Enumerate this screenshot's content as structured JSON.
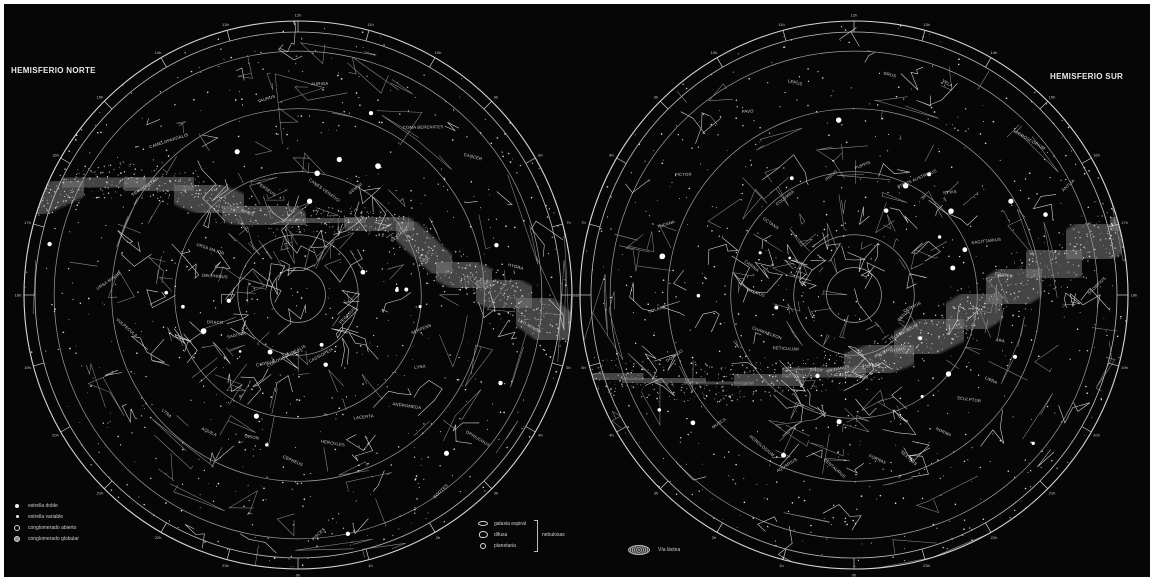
{
  "titles": {
    "north": "HEMISFERIO NORTE",
    "south": "HEMISFERIO SUR"
  },
  "legend_stars": [
    {
      "label": "estrella doble",
      "icon": "bright-star"
    },
    {
      "label": "estrella variable",
      "icon": "star"
    },
    {
      "label": "conglomerado abierto",
      "icon": "open-circle"
    },
    {
      "label": "conglomerado globular",
      "icon": "filled-circle"
    }
  ],
  "legend_nebulae": {
    "items": [
      {
        "label": "galaxia espiral",
        "icon": "ellipse"
      },
      {
        "label": "difusa",
        "icon": "diffuse"
      },
      {
        "label": "planetaria",
        "icon": "planetary"
      }
    ],
    "group_label": "nebulosas"
  },
  "legend_milkyway": {
    "label": "Vía láctea",
    "icon": "milky-way"
  },
  "ra_labels": [
    "0h",
    "1h",
    "2h",
    "3h",
    "4h",
    "5h",
    "6h",
    "7h",
    "8h",
    "9h",
    "10h",
    "11h",
    "12h",
    "13h",
    "14h",
    "15h",
    "16h",
    "17h",
    "18h",
    "19h",
    "20h",
    "21h",
    "22h",
    "23h"
  ],
  "north_constellations": [
    "PEGASUS",
    "ANDROMEDA",
    "CASSIOPEIA",
    "CEPHEUS",
    "CYGNUS",
    "LYRA",
    "DRACO",
    "URSA MINOR",
    "URSA MAJOR",
    "CAMELOPARDALIS",
    "PERSEUS",
    "AURIGA",
    "GEMINI",
    "CANCER",
    "LEO",
    "LEO MINOR",
    "LYNX",
    "BOOTES",
    "HERCULES",
    "CORONA BOREALIS",
    "AQUILA",
    "SAGITTA",
    "VULPECULA",
    "DELPHINUS",
    "TRIANGULUM",
    "ARIES",
    "TAURUS",
    "CANES VENATICI",
    "COMA BERENICES",
    "SEXTANS",
    "HYDRA",
    "SERPENS",
    "OPHIUCHUS",
    "LACERTA",
    "PISCES",
    "ORION"
  ],
  "south_constellations": [
    "CETUS",
    "SCULPTOR",
    "PHOENIX",
    "FORNAX",
    "ERIDANUS",
    "HOROLOGIUM",
    "RETICULUM",
    "DORADO",
    "HYDRUS",
    "TUCANA",
    "OCTANS",
    "PAVO",
    "INDUS",
    "GRUS",
    "PISCIS AUSTRINUS",
    "MICROSCOPIUM",
    "SAGITTARIUS",
    "SCORPIUS",
    "ARA",
    "TELESCOPIUM",
    "NORMA",
    "LUPUS",
    "CENTAURUS",
    "CRUX",
    "MUSCA",
    "CHAMAELEON",
    "VOLANS",
    "CARINA",
    "PICTOR",
    "COLUMBA",
    "LEPUS",
    "PUPPIS",
    "VELA",
    "PYXIS",
    "ANTLIA",
    "CRATER",
    "CORVUS",
    "LIBRA",
    "HYDRA",
    "SEXTANS",
    "CAPRICORNUS",
    "AQUARIUS"
  ]
}
